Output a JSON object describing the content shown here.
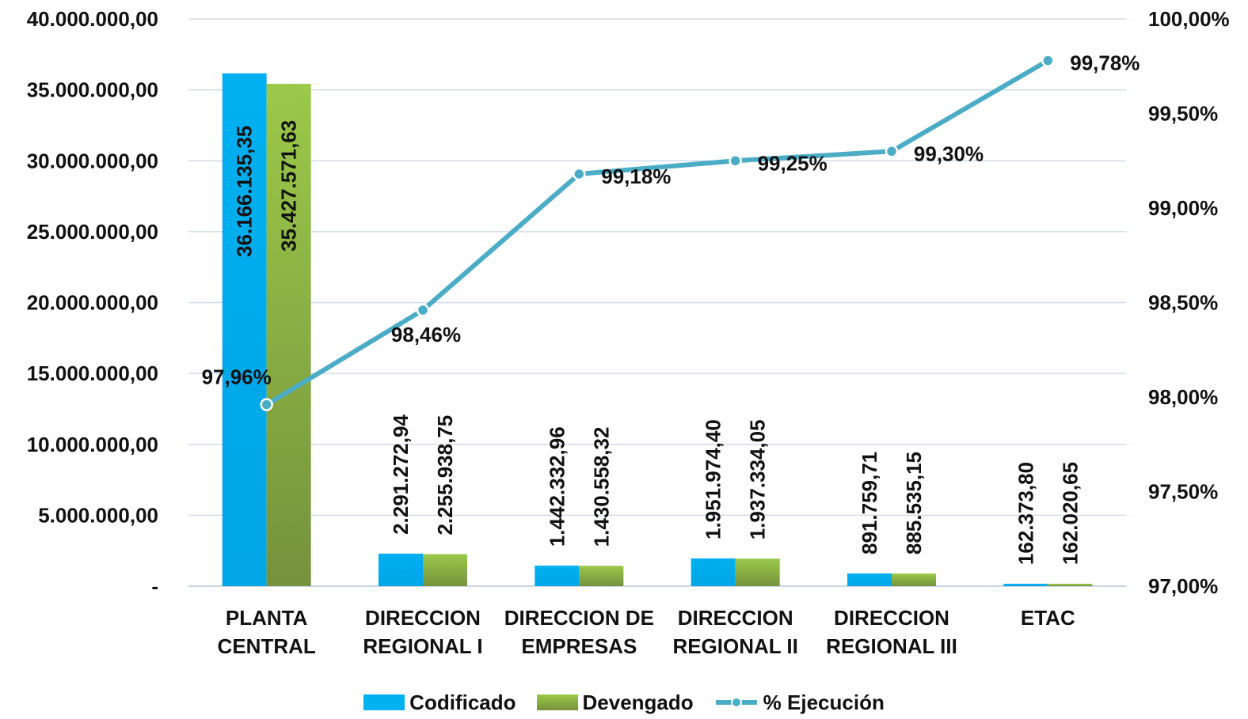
{
  "chart_data": {
    "type": "bar",
    "categories": [
      [
        "PLANTA",
        "CENTRAL"
      ],
      [
        "DIRECCION",
        "REGIONAL I"
      ],
      [
        "DIRECCION DE",
        "EMPRESAS"
      ],
      [
        "DIRECCION",
        "REGIONAL II"
      ],
      [
        "DIRECCION",
        "REGIONAL III"
      ],
      [
        "ETAC"
      ]
    ],
    "series": [
      {
        "name": "Codificado",
        "type": "bar",
        "axis": "left",
        "color": "#00b0f0",
        "values": [
          36166135.35,
          2291272.94,
          1442332.96,
          1951974.4,
          891759.71,
          162373.8
        ],
        "labels": [
          "36.166.135,35",
          "2.291.272,94",
          "1.442.332,96",
          "1.951.974,40",
          "891.759,71",
          "162.373,80"
        ]
      },
      {
        "name": "Devengado",
        "type": "bar",
        "axis": "left",
        "color": "#92c13e",
        "values": [
          35427571.63,
          2255938.75,
          1430558.32,
          1937334.05,
          885535.15,
          162020.65
        ],
        "labels": [
          "35.427.571,63",
          "2.255.938,75",
          "1.430.558,32",
          "1.937.334,05",
          "885.535,15",
          "162.020,65"
        ]
      },
      {
        "name": "% Ejecución",
        "type": "line",
        "axis": "right",
        "color": "#4bacc6",
        "values": [
          97.96,
          98.46,
          99.18,
          99.25,
          99.3,
          99.78
        ],
        "labels": [
          "97,96%",
          "98,46%",
          "99,18%",
          "99,25%",
          "99,30%",
          "99,78%"
        ]
      }
    ],
    "y_left": {
      "ylim": [
        0,
        40000000
      ],
      "ticks": [
        "-",
        "5.000.000,00",
        "10.000.000,00",
        "15.000.000,00",
        "20.000.000,00",
        "25.000.000,00",
        "30.000.000,00",
        "35.000.000,00",
        "40.000.000,00"
      ]
    },
    "y_right": {
      "ylim": [
        97,
        100
      ],
      "ticks": [
        "97,00%",
        "97,50%",
        "98,00%",
        "98,50%",
        "99,00%",
        "99,50%",
        "100,00%"
      ]
    },
    "grid": true,
    "legend_position": "bottom"
  },
  "legend": {
    "codificado": "Codificado",
    "devengado": "Devengado",
    "ejecucion": "% Ejecución"
  }
}
